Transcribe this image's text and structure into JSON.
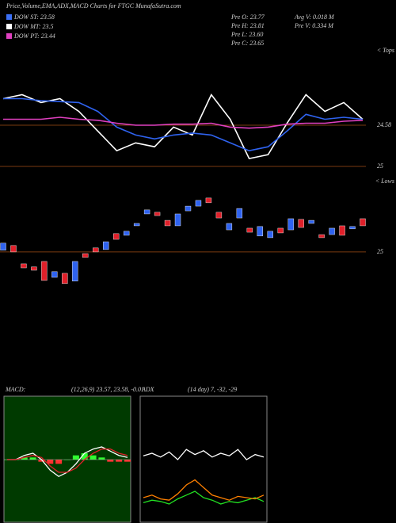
{
  "header": {
    "title": "Price,Volume,EMA,ADX,MACD Charts for FTGC MunafaSutra.com",
    "dow": [
      {
        "text": "DOW ST: 23.58",
        "color": "#3b6ff5"
      },
      {
        "text": "DOW MT: 23.5",
        "color": "#ffffff"
      },
      {
        "text": "DOW PT: 23.44",
        "color": "#e040c0"
      }
    ],
    "pre": [
      "Pre  O: 23.77",
      "Pre  H: 23.81",
      "Pre  L: 23.60",
      "Pre  C: 23.65"
    ],
    "vol": [
      "Avg V: 0.018 M",
      "Pre  V: 0.334 M"
    ]
  },
  "chart_data": [
    {
      "type": "line",
      "annotation": "< Tops",
      "ylim": [
        25.04,
        23.79
      ],
      "yticks": [
        24.58,
        25
      ],
      "series": [
        {
          "color": "#ffffff",
          "values": [
            24.31,
            24.27,
            24.35,
            24.31,
            24.44,
            24.64,
            24.84,
            24.76,
            24.8,
            24.6,
            24.68,
            24.27,
            24.52,
            24.92,
            24.88,
            24.56,
            24.27,
            24.44,
            24.35,
            24.52
          ]
        },
        {
          "color": "#2f63f0",
          "values": [
            24.31,
            24.31,
            24.33,
            24.34,
            24.35,
            24.44,
            24.6,
            24.68,
            24.72,
            24.68,
            24.66,
            24.68,
            24.76,
            24.84,
            24.8,
            24.64,
            24.47,
            24.52,
            24.5,
            24.52
          ]
        },
        {
          "color": "#e040c0",
          "values": [
            24.52,
            24.52,
            24.52,
            24.5,
            24.52,
            24.53,
            24.56,
            24.58,
            24.58,
            24.57,
            24.57,
            24.56,
            24.6,
            24.61,
            24.6,
            24.57,
            24.56,
            24.56,
            24.54,
            24.53
          ]
        }
      ]
    },
    {
      "type": "candlestick",
      "annotation": "< Lows",
      "ylim": [
        24.843,
        25.31
      ],
      "yticks": [
        25
      ],
      "up_color": "#2f63f0",
      "down_color": "#e0202a",
      "open": [
        25.007,
        25.027,
        24.95,
        24.937,
        24.96,
        24.893,
        24.91,
        24.877,
        24.993,
        25.017,
        25.01,
        25.077,
        25.07,
        25.11,
        25.16,
        25.167,
        25.133,
        25.11,
        25.173,
        25.193,
        25.227,
        25.167,
        25.093,
        25.143,
        25.1,
        25.067,
        25.06,
        25.1,
        25.093,
        25.137,
        25.12,
        25.073,
        25.073,
        25.11,
        25.097,
        25.14
      ],
      "close": [
        25.037,
        25.0,
        24.933,
        24.923,
        24.88,
        24.917,
        24.867,
        24.96,
        24.977,
        25.0,
        25.043,
        25.053,
        25.087,
        25.12,
        25.177,
        25.153,
        25.11,
        25.16,
        25.193,
        25.217,
        25.207,
        25.143,
        25.12,
        25.183,
        25.083,
        25.107,
        25.087,
        25.08,
        25.14,
        25.103,
        25.133,
        25.06,
        25.1,
        25.07,
        25.107,
        25.11
      ]
    },
    {
      "type": "line",
      "title": "MACD:",
      "subtitle": "(12,26,9) 23.57, 23.58, -0.01",
      "ylim": [
        -0.3,
        0.3
      ],
      "series": [
        {
          "color": "#ffffff",
          "values": [
            0,
            0,
            0.02,
            0.03,
            0,
            -0.05,
            -0.08,
            -0.06,
            -0.02,
            0.03,
            0.05,
            0.06,
            0.04,
            0.02,
            0.01
          ]
        },
        {
          "color": "#e0202a",
          "values": [
            0,
            0,
            0.01,
            0.02,
            0.01,
            -0.03,
            -0.06,
            -0.06,
            -0.04,
            0,
            0.03,
            0.05,
            0.05,
            0.03,
            0.02
          ]
        }
      ],
      "histogram": [
        0,
        0,
        0.01,
        0.01,
        -0.01,
        -0.02,
        -0.02,
        0,
        0.02,
        0.03,
        0.02,
        0.01,
        -0.01,
        -0.01,
        -0.01
      ]
    },
    {
      "type": "line",
      "title": "ADX",
      "subtitle": "(14 day) 7, -32, -29",
      "ylim": [
        0,
        100
      ],
      "series": [
        {
          "color": "#ffffff",
          "values": [
            53,
            55,
            52,
            56,
            50,
            58,
            54,
            57,
            52,
            55,
            53,
            58,
            50,
            54,
            52
          ]
        },
        {
          "color": "#22e022",
          "values": [
            16,
            18,
            17,
            15,
            19,
            22,
            25,
            20,
            18,
            15,
            17,
            16,
            18,
            20,
            17
          ]
        },
        {
          "color": "#ff8000",
          "values": [
            20,
            22,
            19,
            18,
            23,
            30,
            34,
            28,
            22,
            20,
            18,
            21,
            20,
            19,
            22
          ]
        }
      ]
    }
  ]
}
